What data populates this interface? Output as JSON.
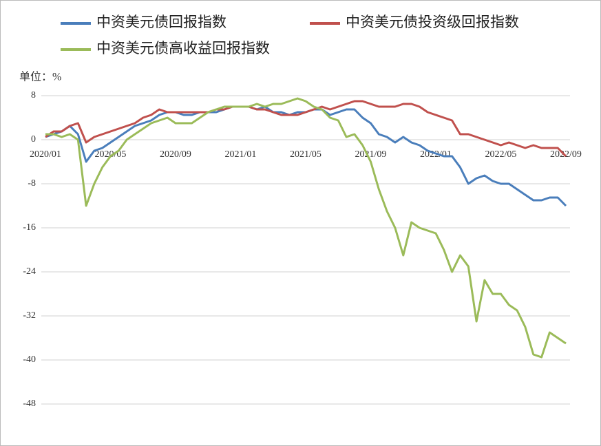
{
  "chart_data": {
    "type": "line",
    "unit_label": "单位：%",
    "categories": [
      "2020/01",
      null,
      null,
      null,
      null,
      null,
      null,
      null,
      "2020/05",
      null,
      null,
      null,
      null,
      null,
      null,
      null,
      "2020/09",
      null,
      null,
      null,
      null,
      null,
      null,
      null,
      "2021/01",
      null,
      null,
      null,
      null,
      null,
      null,
      null,
      "2021/05",
      null,
      null,
      null,
      null,
      null,
      null,
      null,
      "2021/09",
      null,
      null,
      null,
      null,
      null,
      null,
      null,
      "2022/01",
      null,
      null,
      null,
      null,
      null,
      null,
      null,
      "2022/05",
      null,
      null,
      null,
      null,
      null,
      null,
      null,
      "2022/09"
    ],
    "series": [
      {
        "name": "中资美元债回报指数",
        "color": "#4a7ebb",
        "values": [
          0.5,
          1,
          1.5,
          2.5,
          1,
          -4,
          -2,
          -1.5,
          -0.5,
          0.5,
          1.5,
          2.5,
          3,
          3.5,
          4.5,
          5,
          5,
          4.5,
          4.5,
          5,
          5,
          5,
          5.5,
          6,
          6,
          6,
          5.5,
          6,
          5,
          5,
          4.5,
          5,
          5,
          5.5,
          5.5,
          4.5,
          5,
          5.5,
          5.5,
          4,
          3,
          1,
          0.5,
          -0.5,
          0.5,
          -0.5,
          -1,
          -2,
          -2.5,
          -3,
          -3,
          -5,
          -8,
          -7,
          -6.5,
          -7.5,
          -8,
          -8,
          -9,
          -10,
          -11,
          -11,
          -10.5,
          -10.5,
          -12
        ]
      },
      {
        "name": "中资美元债投资级回报指数",
        "color": "#c0504d",
        "values": [
          0.5,
          1.5,
          1.5,
          2.5,
          3,
          -0.5,
          0.5,
          1,
          1.5,
          2,
          2.5,
          3,
          4,
          4.5,
          5.5,
          5,
          5,
          5,
          5,
          5,
          5,
          5.5,
          5.5,
          6,
          6,
          6,
          5.5,
          5.5,
          5,
          4.5,
          4.5,
          4.5,
          5,
          5.5,
          6,
          5.5,
          6,
          6.5,
          7,
          7,
          6.5,
          6,
          6,
          6,
          6.5,
          6.5,
          6,
          5,
          4.5,
          4,
          3.5,
          1,
          1,
          0.5,
          0,
          -0.5,
          -1,
          -0.5,
          -1,
          -1.5,
          -1,
          -1.5,
          -1.5,
          -1.5,
          -3
        ]
      },
      {
        "name": "中资美元债高收益回报指数",
        "color": "#9bbb59",
        "values": [
          1,
          1,
          0.5,
          1,
          0,
          -12,
          -8,
          -5,
          -3,
          -2,
          0,
          1,
          2,
          3,
          3.5,
          4,
          3,
          3,
          3,
          4,
          5,
          5.5,
          6,
          6,
          6,
          6,
          6.5,
          6,
          6.5,
          6.5,
          7,
          7.5,
          7,
          6,
          5.5,
          4,
          3.5,
          0.5,
          1,
          -1,
          -4,
          -9,
          -13,
          -16,
          -21,
          -15,
          -16,
          -16.5,
          -17,
          -20,
          -24,
          -21,
          -23,
          -33,
          -25.5,
          -28,
          -28,
          -30,
          -31,
          -34,
          -39,
          -39.5,
          -35,
          -36,
          -37
        ]
      }
    ],
    "ylim": [
      -48,
      8
    ],
    "yticks": [
      -48,
      -40,
      -32,
      -24,
      -16,
      -8,
      0,
      8
    ],
    "grid": true
  }
}
